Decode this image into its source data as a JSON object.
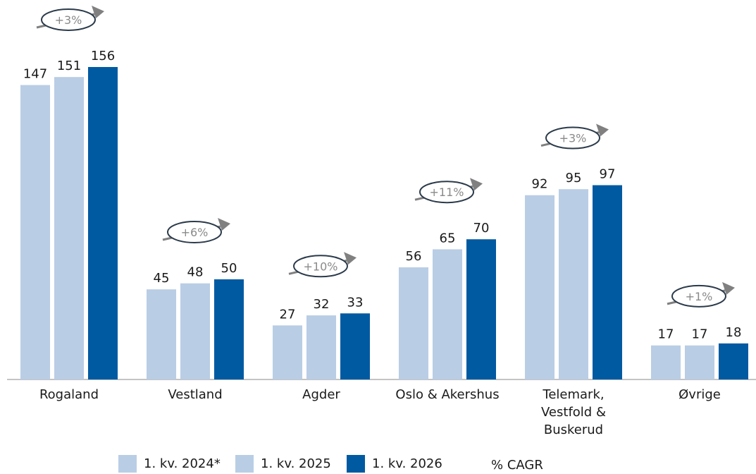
{
  "chart_data": {
    "type": "bar",
    "categories": [
      "Rogaland",
      "Vestland",
      "Agder",
      "Oslo & Akershus",
      "Telemark,\nVestfold &\nBuskerud",
      "Øvrige"
    ],
    "series": [
      {
        "name": "1. kv. 2024*",
        "color": "#b9cde5",
        "values": [
          147,
          45,
          27,
          56,
          92,
          17
        ]
      },
      {
        "name": "1. kv. 2025",
        "color": "#b9cde5",
        "values": [
          151,
          48,
          32,
          65,
          95,
          17
        ]
      },
      {
        "name": "1. kv. 2026",
        "color": "#005aa2",
        "values": [
          156,
          50,
          33,
          70,
          97,
          18
        ]
      }
    ],
    "annotations": [
      "+3%",
      "+6%",
      "+10%",
      "+11%",
      "+3%",
      "+1%"
    ],
    "annotation_legend": "% CAGR",
    "legend": "bottom"
  }
}
